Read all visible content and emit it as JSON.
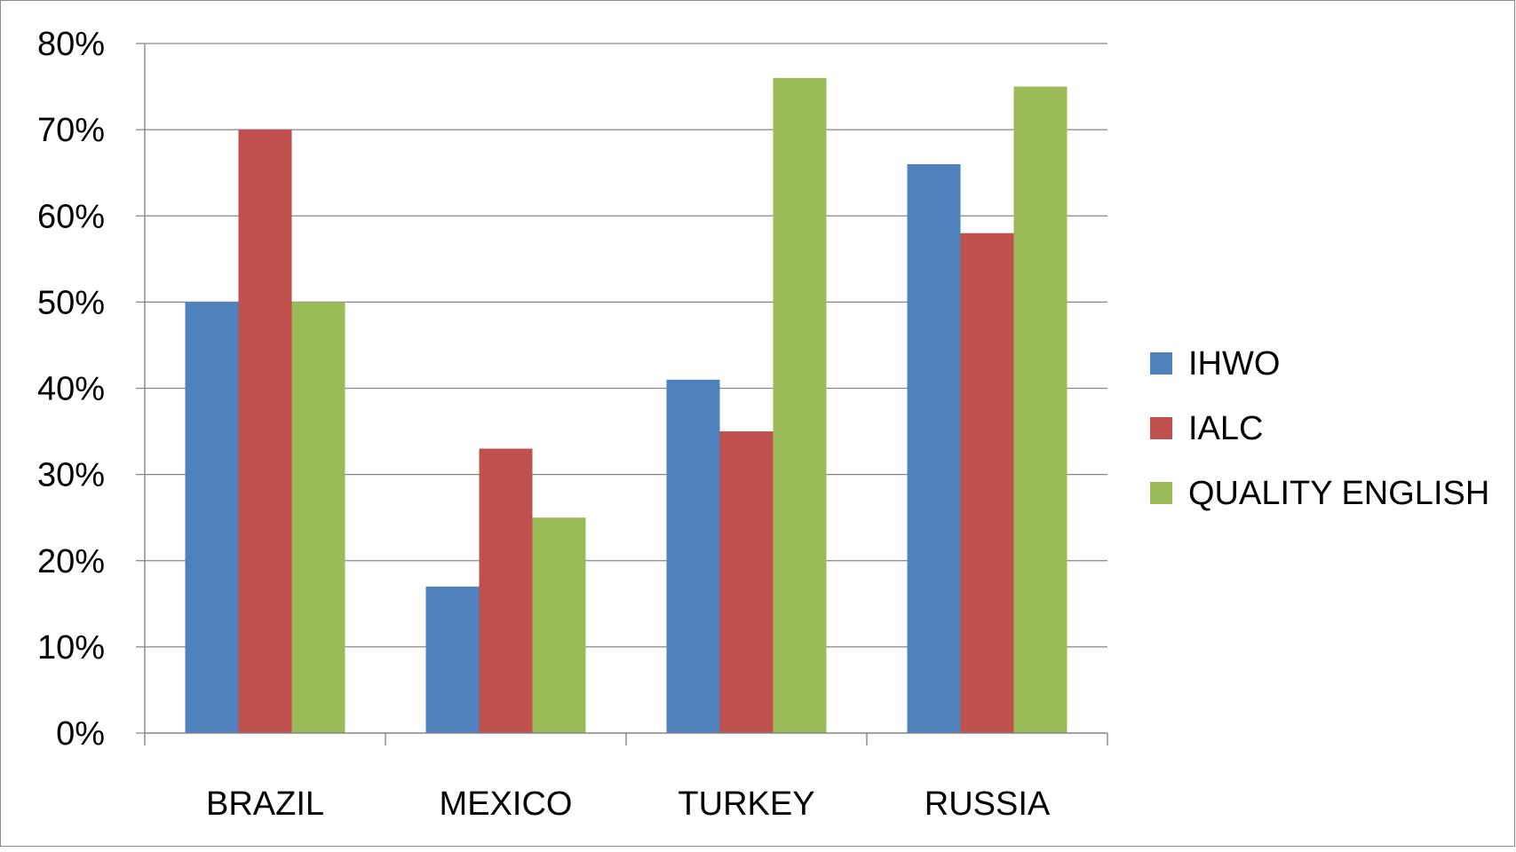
{
  "chart_data": {
    "type": "bar",
    "categories": [
      "BRAZIL",
      "MEXICO",
      "TURKEY",
      "RUSSIA"
    ],
    "series": [
      {
        "name": "IHWO",
        "color": "#4f81bd",
        "values": [
          50,
          17,
          41,
          66
        ]
      },
      {
        "name": "IALC",
        "color": "#c0504d",
        "values": [
          70,
          33,
          35,
          58
        ]
      },
      {
        "name": "QUALITY ENGLISH",
        "color": "#9bbb59",
        "values": [
          50,
          25,
          76,
          75
        ]
      }
    ],
    "ylim": [
      0,
      80
    ],
    "yticks": [
      0,
      10,
      20,
      30,
      40,
      50,
      60,
      70,
      80
    ],
    "ytick_format": "percent",
    "grid": true,
    "legend": "right"
  }
}
